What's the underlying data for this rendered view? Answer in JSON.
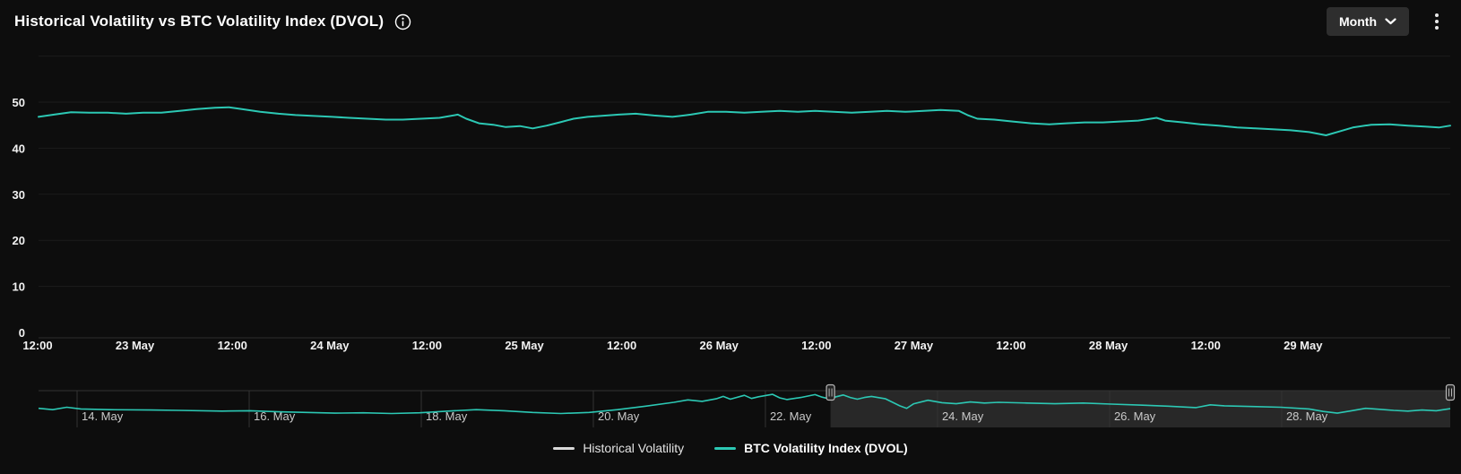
{
  "header": {
    "title": "Historical Volatility vs BTC Volatility Index (DVOL)",
    "period_button_label": "Month"
  },
  "colors": {
    "background": "#0d0d0d",
    "accent_teal": "#2cc8b4",
    "grid": "#1d1d1d",
    "axis_line": "#2d2d2d",
    "text_primary": "#f2f2f2",
    "navigator_text": "#c9c9c9",
    "navigator_selection_bg": "#282828",
    "navigator_grid": "#343434",
    "handle_stroke": "#b8b8b8",
    "handle_fill": "#242424",
    "button_bg": "#2e2e2e",
    "hv_series_color": "#d9d9d9"
  },
  "chart_data": {
    "type": "line",
    "title": "Historical Volatility vs BTC Volatility Index (DVOL)",
    "ylim": [
      0,
      60
    ],
    "y_ticks": [
      0,
      10,
      20,
      30,
      40,
      50
    ],
    "x_tick_labels": [
      "12:00",
      "23 May",
      "12:00",
      "24 May",
      "12:00",
      "25 May",
      "12:00",
      "26 May",
      "12:00",
      "27 May",
      "12:00",
      "28 May",
      "12:00",
      "29 May"
    ],
    "grid": "horizontal",
    "legend_position": "bottom-center",
    "series": [
      {
        "name": "Historical Volatility",
        "color": "#d9d9d9",
        "bold_legend": false,
        "points": []
      },
      {
        "name": "BTC Volatility Index (DVOL)",
        "color": "#2cc8b4",
        "bold_legend": true,
        "points": [
          [
            0.0,
            46.8
          ],
          [
            0.011,
            47.3
          ],
          [
            0.023,
            47.8
          ],
          [
            0.036,
            47.7
          ],
          [
            0.049,
            47.7
          ],
          [
            0.062,
            47.5
          ],
          [
            0.074,
            47.7
          ],
          [
            0.087,
            47.7
          ],
          [
            0.1,
            48.1
          ],
          [
            0.112,
            48.5
          ],
          [
            0.125,
            48.8
          ],
          [
            0.135,
            48.9
          ],
          [
            0.144,
            48.5
          ],
          [
            0.157,
            47.9
          ],
          [
            0.17,
            47.5
          ],
          [
            0.182,
            47.2
          ],
          [
            0.195,
            47.0
          ],
          [
            0.208,
            46.8
          ],
          [
            0.22,
            46.6
          ],
          [
            0.233,
            46.4
          ],
          [
            0.246,
            46.2
          ],
          [
            0.258,
            46.2
          ],
          [
            0.271,
            46.4
          ],
          [
            0.284,
            46.6
          ],
          [
            0.297,
            47.3
          ],
          [
            0.303,
            46.4
          ],
          [
            0.312,
            45.4
          ],
          [
            0.322,
            45.1
          ],
          [
            0.331,
            44.6
          ],
          [
            0.341,
            44.8
          ],
          [
            0.35,
            44.3
          ],
          [
            0.36,
            44.9
          ],
          [
            0.369,
            45.6
          ],
          [
            0.379,
            46.4
          ],
          [
            0.389,
            46.8
          ],
          [
            0.398,
            47.0
          ],
          [
            0.411,
            47.3
          ],
          [
            0.423,
            47.5
          ],
          [
            0.436,
            47.1
          ],
          [
            0.449,
            46.8
          ],
          [
            0.462,
            47.3
          ],
          [
            0.474,
            47.9
          ],
          [
            0.487,
            47.9
          ],
          [
            0.5,
            47.7
          ],
          [
            0.512,
            47.9
          ],
          [
            0.525,
            48.1
          ],
          [
            0.538,
            47.9
          ],
          [
            0.55,
            48.1
          ],
          [
            0.563,
            47.9
          ],
          [
            0.576,
            47.7
          ],
          [
            0.589,
            47.9
          ],
          [
            0.601,
            48.1
          ],
          [
            0.614,
            47.9
          ],
          [
            0.627,
            48.1
          ],
          [
            0.639,
            48.3
          ],
          [
            0.652,
            48.1
          ],
          [
            0.658,
            47.2
          ],
          [
            0.665,
            46.4
          ],
          [
            0.677,
            46.2
          ],
          [
            0.69,
            45.8
          ],
          [
            0.703,
            45.4
          ],
          [
            0.716,
            45.2
          ],
          [
            0.728,
            45.4
          ],
          [
            0.741,
            45.6
          ],
          [
            0.754,
            45.6
          ],
          [
            0.766,
            45.8
          ],
          [
            0.779,
            46.0
          ],
          [
            0.792,
            46.6
          ],
          [
            0.798,
            46.0
          ],
          [
            0.811,
            45.6
          ],
          [
            0.823,
            45.2
          ],
          [
            0.836,
            44.9
          ],
          [
            0.849,
            44.5
          ],
          [
            0.862,
            44.3
          ],
          [
            0.874,
            44.1
          ],
          [
            0.887,
            43.9
          ],
          [
            0.9,
            43.5
          ],
          [
            0.912,
            42.8
          ],
          [
            0.922,
            43.7
          ],
          [
            0.931,
            44.5
          ],
          [
            0.944,
            45.1
          ],
          [
            0.957,
            45.2
          ],
          [
            0.97,
            44.9
          ],
          [
            0.982,
            44.7
          ],
          [
            0.992,
            44.5
          ],
          [
            1.0,
            44.9
          ]
        ]
      }
    ],
    "navigator": {
      "tick_labels": [
        "14. May",
        "16. May",
        "18. May",
        "20. May",
        "22. May",
        "24. May",
        "26. May",
        "28. May"
      ],
      "selection_start_frac": 0.561,
      "selection_end_frac": 1.0,
      "points": [
        [
          0.0,
          44.6
        ],
        [
          0.01,
          44.2
        ],
        [
          0.02,
          44.9
        ],
        [
          0.03,
          44.4
        ],
        [
          0.05,
          44.2
        ],
        [
          0.08,
          44.1
        ],
        [
          0.1,
          44.0
        ],
        [
          0.13,
          43.8
        ],
        [
          0.15,
          43.9
        ],
        [
          0.17,
          43.6
        ],
        [
          0.19,
          43.4
        ],
        [
          0.21,
          43.2
        ],
        [
          0.23,
          43.3
        ],
        [
          0.25,
          43.1
        ],
        [
          0.27,
          43.3
        ],
        [
          0.29,
          43.8
        ],
        [
          0.31,
          44.2
        ],
        [
          0.33,
          43.9
        ],
        [
          0.35,
          43.4
        ],
        [
          0.37,
          43.1
        ],
        [
          0.39,
          43.4
        ],
        [
          0.41,
          44.2
        ],
        [
          0.43,
          45.2
        ],
        [
          0.45,
          46.3
        ],
        [
          0.46,
          47.0
        ],
        [
          0.47,
          46.6
        ],
        [
          0.48,
          47.3
        ],
        [
          0.485,
          48.0
        ],
        [
          0.49,
          47.2
        ],
        [
          0.5,
          48.3
        ],
        [
          0.505,
          47.4
        ],
        [
          0.51,
          47.9
        ],
        [
          0.52,
          48.6
        ],
        [
          0.525,
          47.6
        ],
        [
          0.53,
          47.1
        ],
        [
          0.54,
          47.7
        ],
        [
          0.55,
          48.5
        ],
        [
          0.555,
          47.8
        ],
        [
          0.56,
          47.3
        ],
        [
          0.565,
          47.9
        ],
        [
          0.57,
          48.4
        ],
        [
          0.575,
          47.7
        ],
        [
          0.58,
          47.2
        ],
        [
          0.585,
          47.7
        ],
        [
          0.59,
          48.0
        ],
        [
          0.6,
          47.3
        ],
        [
          0.61,
          45.3
        ],
        [
          0.615,
          44.6
        ],
        [
          0.62,
          45.9
        ],
        [
          0.63,
          46.9
        ],
        [
          0.64,
          46.2
        ],
        [
          0.65,
          45.9
        ],
        [
          0.66,
          46.4
        ],
        [
          0.67,
          46.1
        ],
        [
          0.68,
          46.3
        ],
        [
          0.7,
          46.1
        ],
        [
          0.72,
          45.9
        ],
        [
          0.74,
          46.1
        ],
        [
          0.76,
          45.8
        ],
        [
          0.78,
          45.5
        ],
        [
          0.8,
          45.2
        ],
        [
          0.82,
          44.8
        ],
        [
          0.83,
          45.6
        ],
        [
          0.84,
          45.3
        ],
        [
          0.86,
          45.1
        ],
        [
          0.88,
          44.9
        ],
        [
          0.9,
          44.4
        ],
        [
          0.91,
          43.7
        ],
        [
          0.92,
          43.2
        ],
        [
          0.93,
          43.9
        ],
        [
          0.94,
          44.6
        ],
        [
          0.95,
          44.3
        ],
        [
          0.96,
          44.0
        ],
        [
          0.97,
          43.8
        ],
        [
          0.98,
          44.1
        ],
        [
          0.99,
          43.9
        ],
        [
          1.0,
          44.5
        ]
      ]
    }
  }
}
